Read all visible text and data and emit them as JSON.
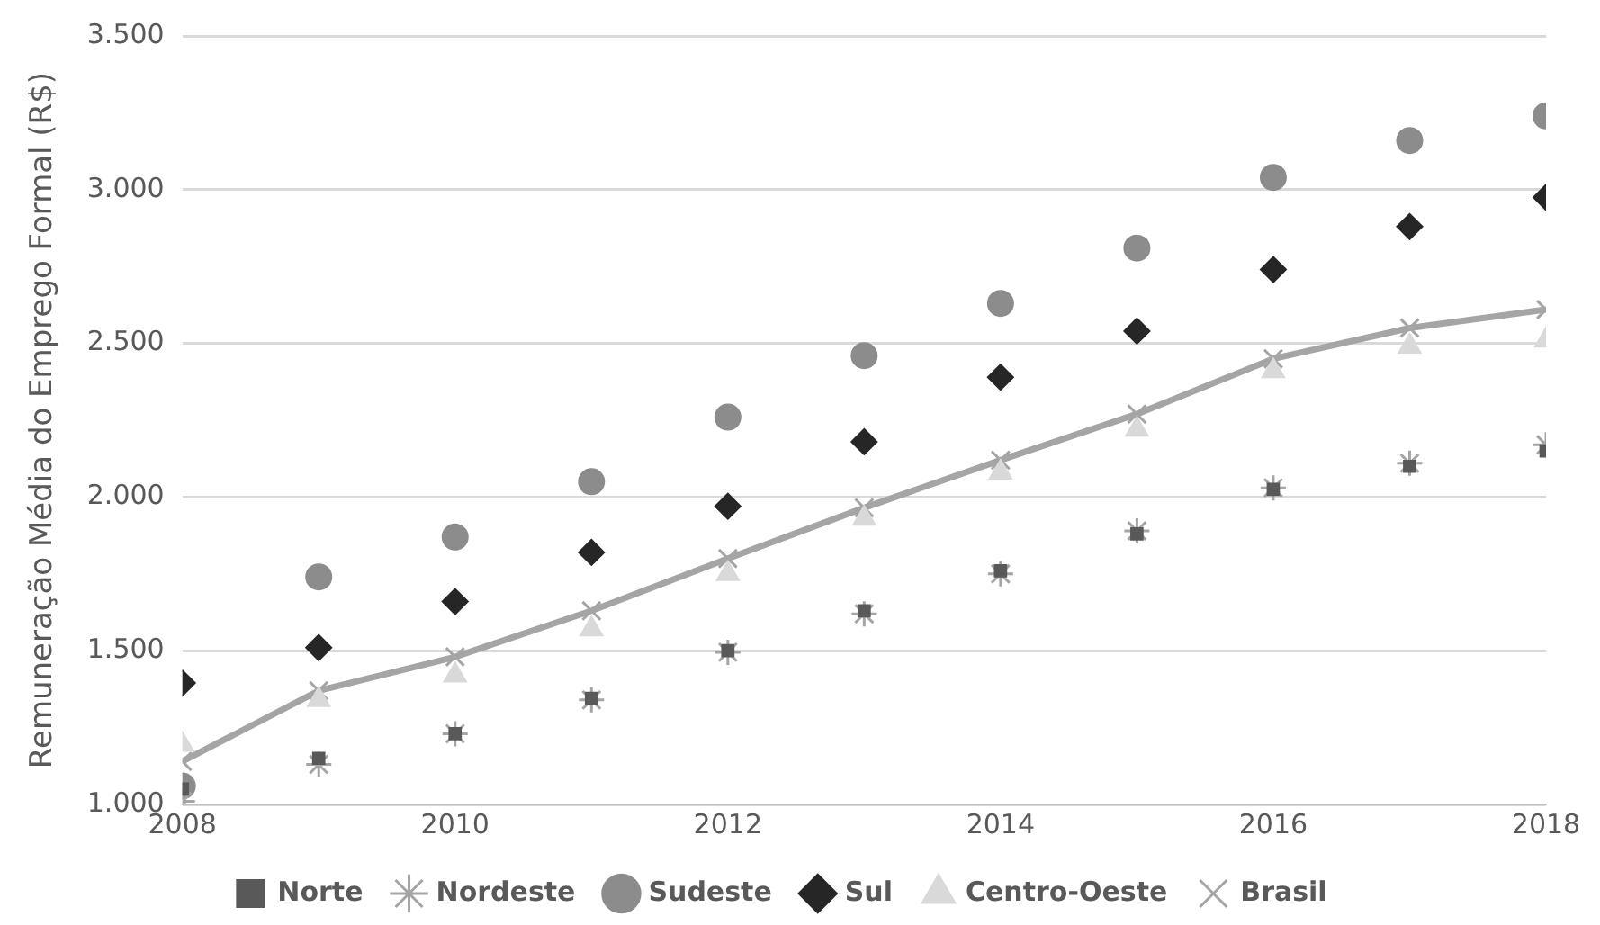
{
  "chart_data": {
    "type": "scatter",
    "ylabel": "Remuneração Média do Emprego Formal (R$)",
    "x": [
      2008,
      2009,
      2010,
      2011,
      2012,
      2013,
      2014,
      2015,
      2016,
      2017,
      2018
    ],
    "xlim": [
      2008,
      2018
    ],
    "xticks": [
      2008,
      2010,
      2012,
      2014,
      2016,
      2018
    ],
    "ylim": [
      1000,
      3500
    ],
    "yticks": [
      {
        "value": 1000,
        "label": "1.000"
      },
      {
        "value": 1500,
        "label": "1.500"
      },
      {
        "value": 2000,
        "label": "2.000"
      },
      {
        "value": 2500,
        "label": "2.500"
      },
      {
        "value": 3000,
        "label": "3.000"
      },
      {
        "value": 3500,
        "label": "3.500"
      }
    ],
    "grid": "y",
    "legend": "bottom",
    "series": [
      {
        "name": "Norte",
        "color": "#595959",
        "marker": "square",
        "values": [
          1050,
          1150,
          1230,
          1345,
          1500,
          1630,
          1760,
          1880,
          2025,
          2100,
          2150
        ]
      },
      {
        "name": "Nordeste",
        "color": "#a5a5a5",
        "marker": "cross",
        "values": [
          1010,
          1130,
          1230,
          1340,
          1495,
          1620,
          1750,
          1890,
          2030,
          2110,
          2170
        ]
      },
      {
        "name": "Sudeste",
        "color": "#8c8c8c",
        "marker": "circle",
        "values": [
          1060,
          1740,
          1870,
          2050,
          2260,
          2460,
          2630,
          2810,
          3040,
          3160,
          3240
        ]
      },
      {
        "name": "Sul",
        "color": "#262626",
        "marker": "diamond",
        "values": [
          1395,
          1510,
          1660,
          1820,
          1970,
          2180,
          2390,
          2540,
          2740,
          2880,
          2975
        ]
      },
      {
        "name": "Centro-Oeste",
        "color": "#d9d9d9",
        "marker": "triangle",
        "values": [
          1195,
          1340,
          1420,
          1570,
          1750,
          1930,
          2080,
          2220,
          2410,
          2490,
          2510
        ]
      },
      {
        "name": "Brasil",
        "color": "#a5a5a5",
        "type": "line",
        "marker": "cross",
        "line_style": "solid",
        "values": [
          1140,
          1370,
          1480,
          1630,
          1800,
          1965,
          2120,
          2270,
          2450,
          2550,
          2610
        ]
      }
    ]
  }
}
